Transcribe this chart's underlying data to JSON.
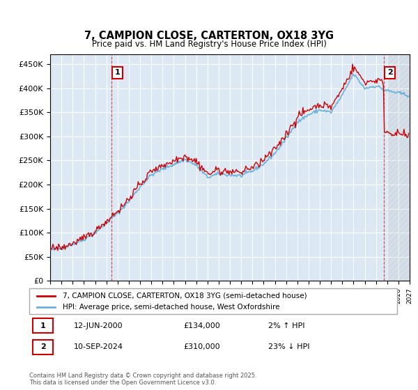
{
  "title": "7, CAMPION CLOSE, CARTERTON, OX18 3YG",
  "subtitle": "Price paid vs. HM Land Registry's House Price Index (HPI)",
  "legend_line1": "7, CAMPION CLOSE, CARTERTON, OX18 3YG (semi-detached house)",
  "legend_line2": "HPI: Average price, semi-detached house, West Oxfordshire",
  "annotation1_label": "1",
  "annotation1_date": "12-JUN-2000",
  "annotation1_price": "£134,000",
  "annotation1_hpi": "2% ↑ HPI",
  "annotation1_year": 2000.45,
  "annotation1_value": 134000,
  "annotation2_label": "2",
  "annotation2_date": "10-SEP-2024",
  "annotation2_price": "£310,000",
  "annotation2_hpi": "23% ↓ HPI",
  "annotation2_year": 2024.7,
  "annotation2_value": 310000,
  "footer": "Contains HM Land Registry data © Crown copyright and database right 2025.\nThis data is licensed under the Open Government Licence v3.0.",
  "xmin": 1995,
  "xmax": 2027,
  "ymin": 0,
  "ymax": 470000,
  "yticks": [
    0,
    50000,
    100000,
    150000,
    200000,
    250000,
    300000,
    350000,
    400000,
    450000
  ],
  "ytick_labels": [
    "£0",
    "£50K",
    "£100K",
    "£150K",
    "£200K",
    "£250K",
    "£300K",
    "£350K",
    "£400K",
    "£450K"
  ],
  "hpi_color": "#6ab0de",
  "price_color": "#cc0000",
  "background_color": "#dce9f5",
  "plot_bg_color": "#dce9f5",
  "grid_color": "#ffffff",
  "annotation_box_color": "#cc0000",
  "hatch_color": "#dce9f5"
}
